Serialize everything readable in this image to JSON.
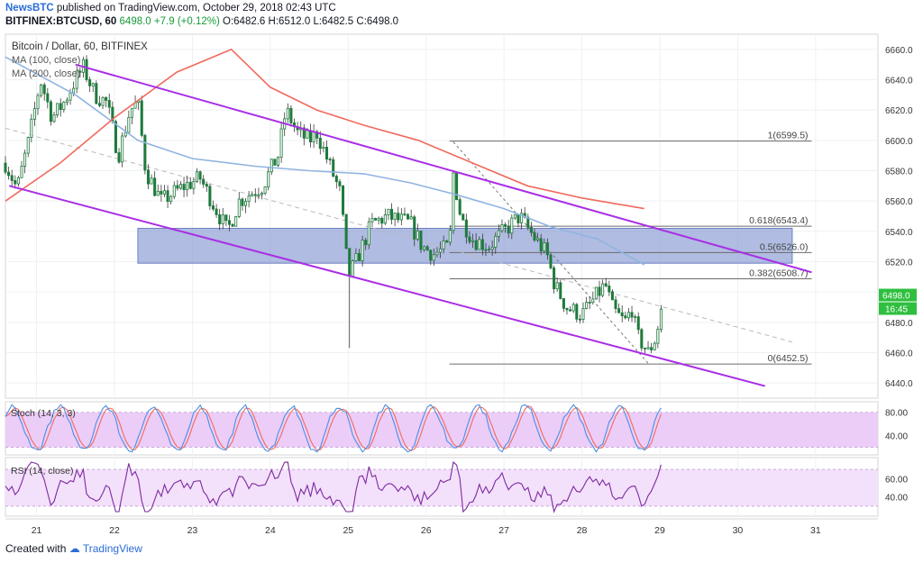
{
  "header": {
    "publisher_brand": "NewsBTC",
    "publisher_text": " published on TradingView.com, October 29, 2018 02:43 UTC",
    "symbol": "BITFINEX:BTCUSD, 60",
    "last": "6498.0",
    "change": "+7.9 (+0.12%)",
    "open": "O:6482.6",
    "high": "H:6512.0",
    "low": "L:6482.5",
    "close": "C:6498.0"
  },
  "footer": {
    "created_with": "Created with",
    "tradingview": "TradingView"
  },
  "colors": {
    "ma100": "#90b4e0",
    "ma200": "#f06a5e",
    "channel": "#a92ee6",
    "zone": "#8093cf",
    "up": "#1e7a3c",
    "down": "#1e7a3c",
    "stoch_k": "#4a8fe2",
    "stoch_d": "#f06a5e",
    "rsi": "#7d2aa0",
    "osc_bg": "#eccdf8",
    "price_tag": "#2fbf3f"
  },
  "chart_data": {
    "type": "candlestick",
    "title": "Bitcoin / Dollar, 60, BITFINEX",
    "legend": [
      "MA (100, close)",
      "MA (200, close)"
    ],
    "x_tick_labels": [
      "21",
      "22",
      "23",
      "24",
      "25",
      "26",
      "27",
      "28",
      "29",
      "30",
      "31"
    ],
    "x_range_days": [
      20.6,
      31.8
    ],
    "price_ylim": [
      6430,
      6670
    ],
    "price_ticks": [
      6440,
      6460,
      6480,
      6500,
      6520,
      6540,
      6560,
      6580,
      6600,
      6620,
      6640,
      6660
    ],
    "current_price": "6498.0",
    "countdown": "16:45",
    "close_anchors": [
      [
        20.6,
        6585
      ],
      [
        20.75,
        6568
      ],
      [
        20.9,
        6600
      ],
      [
        21.05,
        6640
      ],
      [
        21.2,
        6615
      ],
      [
        21.35,
        6625
      ],
      [
        21.5,
        6640
      ],
      [
        21.6,
        6648
      ],
      [
        21.75,
        6630
      ],
      [
        21.9,
        6625
      ],
      [
        22.05,
        6590
      ],
      [
        22.2,
        6620
      ],
      [
        22.3,
        6625
      ],
      [
        22.4,
        6580
      ],
      [
        22.6,
        6560
      ],
      [
        22.9,
        6570
      ],
      [
        23.1,
        6575
      ],
      [
        23.3,
        6555
      ],
      [
        23.45,
        6540
      ],
      [
        23.6,
        6560
      ],
      [
        23.9,
        6570
      ],
      [
        24.1,
        6590
      ],
      [
        24.2,
        6620
      ],
      [
        24.35,
        6605
      ],
      [
        24.5,
        6600
      ],
      [
        24.6,
        6605
      ],
      [
        24.75,
        6585
      ],
      [
        24.9,
        6565
      ],
      [
        25.0,
        6510
      ],
      [
        25.1,
        6520
      ],
      [
        25.3,
        6545
      ],
      [
        25.5,
        6550
      ],
      [
        25.8,
        6545
      ],
      [
        25.95,
        6530
      ],
      [
        26.1,
        6525
      ],
      [
        26.3,
        6530
      ],
      [
        26.35,
        6578
      ],
      [
        26.45,
        6548
      ],
      [
        26.6,
        6535
      ],
      [
        26.8,
        6530
      ],
      [
        27.0,
        6540
      ],
      [
        27.2,
        6550
      ],
      [
        27.4,
        6535
      ],
      [
        27.55,
        6525
      ],
      [
        27.65,
        6505
      ],
      [
        27.8,
        6490
      ],
      [
        28.0,
        6485
      ],
      [
        28.15,
        6495
      ],
      [
        28.3,
        6505
      ],
      [
        28.4,
        6488
      ],
      [
        28.55,
        6480
      ],
      [
        28.65,
        6490
      ],
      [
        28.7,
        6472
      ],
      [
        28.85,
        6460
      ],
      [
        28.95,
        6470
      ],
      [
        29.05,
        6498
      ]
    ],
    "ma100_points": [
      [
        20.6,
        6655
      ],
      [
        21.5,
        6630
      ],
      [
        22.3,
        6600
      ],
      [
        23.0,
        6588
      ],
      [
        23.8,
        6583
      ],
      [
        24.5,
        6580
      ],
      [
        25.2,
        6578
      ],
      [
        25.8,
        6572
      ],
      [
        26.4,
        6564
      ],
      [
        27.0,
        6555
      ],
      [
        27.6,
        6543
      ],
      [
        28.2,
        6535
      ],
      [
        28.8,
        6518
      ]
    ],
    "ma200_points": [
      [
        20.6,
        6560
      ],
      [
        21.3,
        6585
      ],
      [
        22.0,
        6615
      ],
      [
        22.8,
        6645
      ],
      [
        23.5,
        6660
      ],
      [
        24.0,
        6635
      ],
      [
        24.6,
        6620
      ],
      [
        25.2,
        6610
      ],
      [
        25.9,
        6600
      ],
      [
        26.6,
        6585
      ],
      [
        27.3,
        6570
      ],
      [
        28.0,
        6562
      ],
      [
        28.8,
        6555
      ]
    ],
    "channel_upper": [
      [
        21.5,
        6650
      ],
      [
        30.95,
        6513
      ]
    ],
    "channel_lower": [
      [
        20.65,
        6570
      ],
      [
        30.35,
        6438
      ]
    ],
    "support_zone": {
      "x": [
        22.3,
        30.7
      ],
      "y": [
        6519,
        6542
      ]
    },
    "dashed_trend": [
      [
        20.6,
        6608
      ],
      [
        30.7,
        6467
      ]
    ],
    "fibonacci": {
      "x": [
        26.3,
        30.95
      ],
      "levels": [
        {
          "label": "1(6599.5)",
          "value": 6599.5
        },
        {
          "label": "0.618(6543.4)",
          "value": 6543.4
        },
        {
          "label": "0.5(6526.0)",
          "value": 6526.0
        },
        {
          "label": "0.382(6508.7)",
          "value": 6508.7
        },
        {
          "label": "0(6452.5)",
          "value": 6452.5
        }
      ]
    },
    "stoch": {
      "label": "Stoch (14, 3, 3)",
      "ylim": [
        10,
        95
      ],
      "ticks": [
        80,
        40
      ],
      "band": [
        80,
        20
      ]
    },
    "rsi": {
      "label": "RSI (14, close)",
      "ylim": [
        22,
        80
      ],
      "ticks": [
        60,
        40
      ],
      "band": [
        70,
        30
      ]
    }
  }
}
